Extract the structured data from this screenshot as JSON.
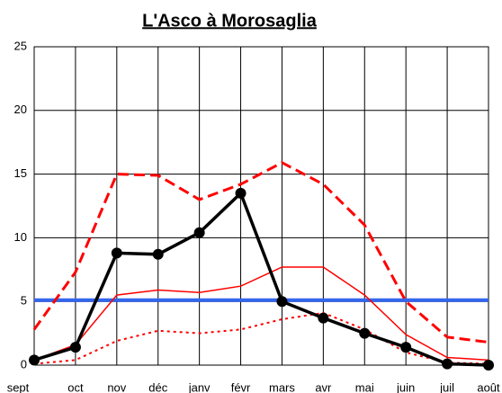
{
  "chart_data": {
    "type": "line",
    "title": "L'Asco à Morosaglia",
    "categories": [
      "sept",
      "oct",
      "nov",
      "déc",
      "janv",
      "févr",
      "mars",
      "avr",
      "mai",
      "juin",
      "juil",
      "août"
    ],
    "series": [
      {
        "color": "#ff0000",
        "style": "dashed",
        "width": 3,
        "values": [
          2.8,
          7.3,
          15.0,
          14.9,
          13.0,
          14.2,
          15.9,
          14.2,
          11.0,
          5.0,
          2.2,
          1.8
        ]
      },
      {
        "color": "#ff0000",
        "style": "solid",
        "width": 1.5,
        "values": [
          0.4,
          1.6,
          5.5,
          5.9,
          5.7,
          6.2,
          7.7,
          7.7,
          5.5,
          2.4,
          0.6,
          0.4
        ]
      },
      {
        "color": "#ff0000",
        "style": "dotted",
        "width": 2,
        "values": [
          0.1,
          0.4,
          1.9,
          2.7,
          2.5,
          2.8,
          3.6,
          4.1,
          2.8,
          1.0,
          0.2,
          0.1
        ]
      },
      {
        "color": "#000000",
        "style": "solid",
        "width": 3.5,
        "marker": "circle",
        "values": [
          0.4,
          1.4,
          8.8,
          8.7,
          10.4,
          13.5,
          5.0,
          3.7,
          2.5,
          1.4,
          0.1,
          0.0
        ]
      }
    ],
    "reference_line": {
      "value": 5.1,
      "color": "#3366ee"
    },
    "ylim": [
      0,
      25
    ],
    "yticks": [
      0,
      5,
      10,
      15,
      20,
      25
    ],
    "grid": true
  }
}
